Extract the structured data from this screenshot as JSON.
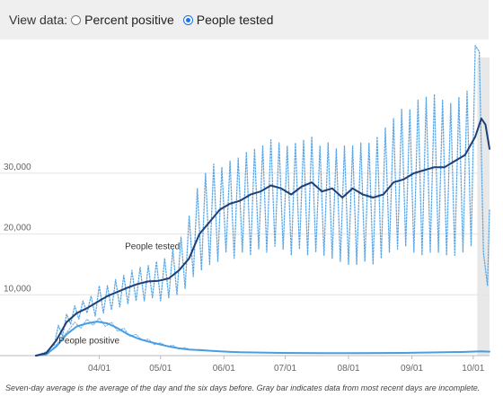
{
  "controls": {
    "view_label": "View data:",
    "options": [
      {
        "label": "Percent positive",
        "selected": false
      },
      {
        "label": "People tested",
        "selected": true
      }
    ]
  },
  "chart_data": {
    "type": "line",
    "ylim": [
      0,
      52000
    ],
    "y_ticks": [
      10000,
      20000,
      30000
    ],
    "y_tick_labels": [
      "10,000",
      "20,000",
      "30,000"
    ],
    "x_tick_labels": [
      "04/01",
      "05/01",
      "06/01",
      "07/01",
      "08/01",
      "09/01",
      "10/01"
    ],
    "x_tick_days": [
      31,
      61,
      92,
      122,
      153,
      184,
      214
    ],
    "x_range_days": [
      0,
      222
    ],
    "gray_bar_days": [
      216,
      222
    ],
    "grid": true,
    "series": [
      {
        "name": "People tested",
        "style": "solid-dark",
        "color": "#1c3f75",
        "points": [
          [
            0,
            0
          ],
          [
            5,
            400
          ],
          [
            10,
            2500
          ],
          [
            15,
            5500
          ],
          [
            20,
            7000
          ],
          [
            25,
            7800
          ],
          [
            30,
            8800
          ],
          [
            35,
            9800
          ],
          [
            40,
            10500
          ],
          [
            45,
            11200
          ],
          [
            50,
            11800
          ],
          [
            55,
            12200
          ],
          [
            60,
            12300
          ],
          [
            65,
            12700
          ],
          [
            70,
            14000
          ],
          [
            75,
            16000
          ],
          [
            80,
            20000
          ],
          [
            85,
            22000
          ],
          [
            90,
            24000
          ],
          [
            95,
            25000
          ],
          [
            100,
            25500
          ],
          [
            105,
            26500
          ],
          [
            110,
            27000
          ],
          [
            115,
            28000
          ],
          [
            120,
            27500
          ],
          [
            125,
            26500
          ],
          [
            130,
            27800
          ],
          [
            135,
            28500
          ],
          [
            140,
            27000
          ],
          [
            145,
            27500
          ],
          [
            150,
            26000
          ],
          [
            155,
            27500
          ],
          [
            160,
            26500
          ],
          [
            165,
            26000
          ],
          [
            170,
            26500
          ],
          [
            175,
            28500
          ],
          [
            180,
            29000
          ],
          [
            185,
            30000
          ],
          [
            190,
            30500
          ],
          [
            195,
            31000
          ],
          [
            200,
            31000
          ],
          [
            205,
            32000
          ],
          [
            210,
            33000
          ],
          [
            215,
            36000
          ],
          [
            218,
            39000
          ],
          [
            220,
            38000
          ],
          [
            222,
            34000
          ]
        ]
      },
      {
        "name": "",
        "style": "dotted-daily",
        "color": "#5aa6e6",
        "points": [
          [
            0,
            0
          ],
          [
            5,
            600
          ],
          [
            9,
            1800
          ],
          [
            11,
            5000
          ],
          [
            13,
            3200
          ],
          [
            15,
            6800
          ],
          [
            17,
            5200
          ],
          [
            19,
            8200
          ],
          [
            21,
            6000
          ],
          [
            23,
            9000
          ],
          [
            25,
            7000
          ],
          [
            27,
            9800
          ],
          [
            29,
            6500
          ],
          [
            31,
            11500
          ],
          [
            33,
            7000
          ],
          [
            35,
            11500
          ],
          [
            37,
            7500
          ],
          [
            39,
            12500
          ],
          [
            41,
            8000
          ],
          [
            43,
            13200
          ],
          [
            45,
            8500
          ],
          [
            47,
            14000
          ],
          [
            49,
            9000
          ],
          [
            51,
            14500
          ],
          [
            53,
            9000
          ],
          [
            55,
            14800
          ],
          [
            57,
            9500
          ],
          [
            59,
            15500
          ],
          [
            61,
            9000
          ],
          [
            63,
            16000
          ],
          [
            65,
            9500
          ],
          [
            67,
            17500
          ],
          [
            69,
            10000
          ],
          [
            71,
            19500
          ],
          [
            73,
            11000
          ],
          [
            75,
            23000
          ],
          [
            77,
            13000
          ],
          [
            79,
            27500
          ],
          [
            81,
            14000
          ],
          [
            83,
            30000
          ],
          [
            85,
            15000
          ],
          [
            87,
            31500
          ],
          [
            89,
            15500
          ],
          [
            91,
            31000
          ],
          [
            93,
            17000
          ],
          [
            95,
            32000
          ],
          [
            97,
            16000
          ],
          [
            99,
            32500
          ],
          [
            101,
            17000
          ],
          [
            103,
            33500
          ],
          [
            105,
            16500
          ],
          [
            107,
            34000
          ],
          [
            109,
            17500
          ],
          [
            111,
            34500
          ],
          [
            113,
            17000
          ],
          [
            115,
            35500
          ],
          [
            117,
            18000
          ],
          [
            119,
            35000
          ],
          [
            121,
            17500
          ],
          [
            123,
            34500
          ],
          [
            125,
            16500
          ],
          [
            127,
            35000
          ],
          [
            129,
            17500
          ],
          [
            131,
            35500
          ],
          [
            133,
            16500
          ],
          [
            135,
            36000
          ],
          [
            137,
            17000
          ],
          [
            139,
            34500
          ],
          [
            141,
            16500
          ],
          [
            143,
            35000
          ],
          [
            145,
            16000
          ],
          [
            147,
            34000
          ],
          [
            149,
            15500
          ],
          [
            151,
            34500
          ],
          [
            153,
            15000
          ],
          [
            155,
            34500
          ],
          [
            157,
            15000
          ],
          [
            159,
            35000
          ],
          [
            161,
            15500
          ],
          [
            163,
            35000
          ],
          [
            165,
            15000
          ],
          [
            167,
            36000
          ],
          [
            169,
            16000
          ],
          [
            171,
            37500
          ],
          [
            173,
            17000
          ],
          [
            175,
            39000
          ],
          [
            177,
            17500
          ],
          [
            179,
            40500
          ],
          [
            181,
            18000
          ],
          [
            183,
            40500
          ],
          [
            185,
            17000
          ],
          [
            187,
            42000
          ],
          [
            189,
            16500
          ],
          [
            191,
            42500
          ],
          [
            193,
            17000
          ],
          [
            195,
            43000
          ],
          [
            197,
            17000
          ],
          [
            199,
            42000
          ],
          [
            201,
            16500
          ],
          [
            203,
            41500
          ],
          [
            205,
            16500
          ],
          [
            207,
            42500
          ],
          [
            209,
            17000
          ],
          [
            211,
            43500
          ],
          [
            213,
            18000
          ],
          [
            215,
            51000
          ],
          [
            217,
            50000
          ],
          [
            219,
            17000
          ],
          [
            221,
            11500
          ],
          [
            222,
            24000
          ]
        ]
      },
      {
        "name": "People positive",
        "style": "solid-light",
        "color": "#4a9de0",
        "points": [
          [
            0,
            0
          ],
          [
            5,
            200
          ],
          [
            10,
            1500
          ],
          [
            15,
            3500
          ],
          [
            20,
            4800
          ],
          [
            25,
            5300
          ],
          [
            30,
            5600
          ],
          [
            35,
            5300
          ],
          [
            40,
            4500
          ],
          [
            45,
            3500
          ],
          [
            50,
            2800
          ],
          [
            55,
            2300
          ],
          [
            60,
            1900
          ],
          [
            65,
            1500
          ],
          [
            70,
            1200
          ],
          [
            75,
            1000
          ],
          [
            80,
            900
          ],
          [
            90,
            700
          ],
          [
            100,
            550
          ],
          [
            110,
            500
          ],
          [
            120,
            450
          ],
          [
            140,
            400
          ],
          [
            160,
            400
          ],
          [
            180,
            450
          ],
          [
            200,
            550
          ],
          [
            210,
            600
          ],
          [
            218,
            700
          ],
          [
            222,
            650
          ]
        ]
      },
      {
        "name": "",
        "style": "dotted-light",
        "color": "#7ab6ea",
        "points": [
          [
            0,
            0
          ],
          [
            6,
            300
          ],
          [
            10,
            1800
          ],
          [
            13,
            3000
          ],
          [
            16,
            4200
          ],
          [
            19,
            5500
          ],
          [
            22,
            4500
          ],
          [
            25,
            6000
          ],
          [
            28,
            5000
          ],
          [
            31,
            6200
          ],
          [
            34,
            4800
          ],
          [
            37,
            5500
          ],
          [
            40,
            4000
          ],
          [
            43,
            4500
          ],
          [
            46,
            3200
          ],
          [
            49,
            3500
          ],
          [
            52,
            2500
          ],
          [
            55,
            2700
          ],
          [
            58,
            1800
          ],
          [
            61,
            2100
          ],
          [
            64,
            1500
          ],
          [
            67,
            1700
          ],
          [
            70,
            1100
          ],
          [
            73,
            1300
          ],
          [
            76,
            900
          ],
          [
            80,
            1000
          ],
          [
            90,
            700
          ],
          [
            100,
            600
          ],
          [
            110,
            500
          ],
          [
            120,
            450
          ],
          [
            140,
            400
          ],
          [
            160,
            450
          ],
          [
            180,
            500
          ],
          [
            200,
            550
          ],
          [
            215,
            700
          ],
          [
            222,
            600
          ]
        ]
      }
    ],
    "annotations": [
      {
        "text": "People tested",
        "x_day": 57,
        "y": 17500
      },
      {
        "text": "People positive",
        "x_day": 26,
        "y": 2000
      }
    ]
  },
  "footnote": "Seven-day average is the average of the day and the six days before. Gray bar indicates data from most recent days are incomplete."
}
